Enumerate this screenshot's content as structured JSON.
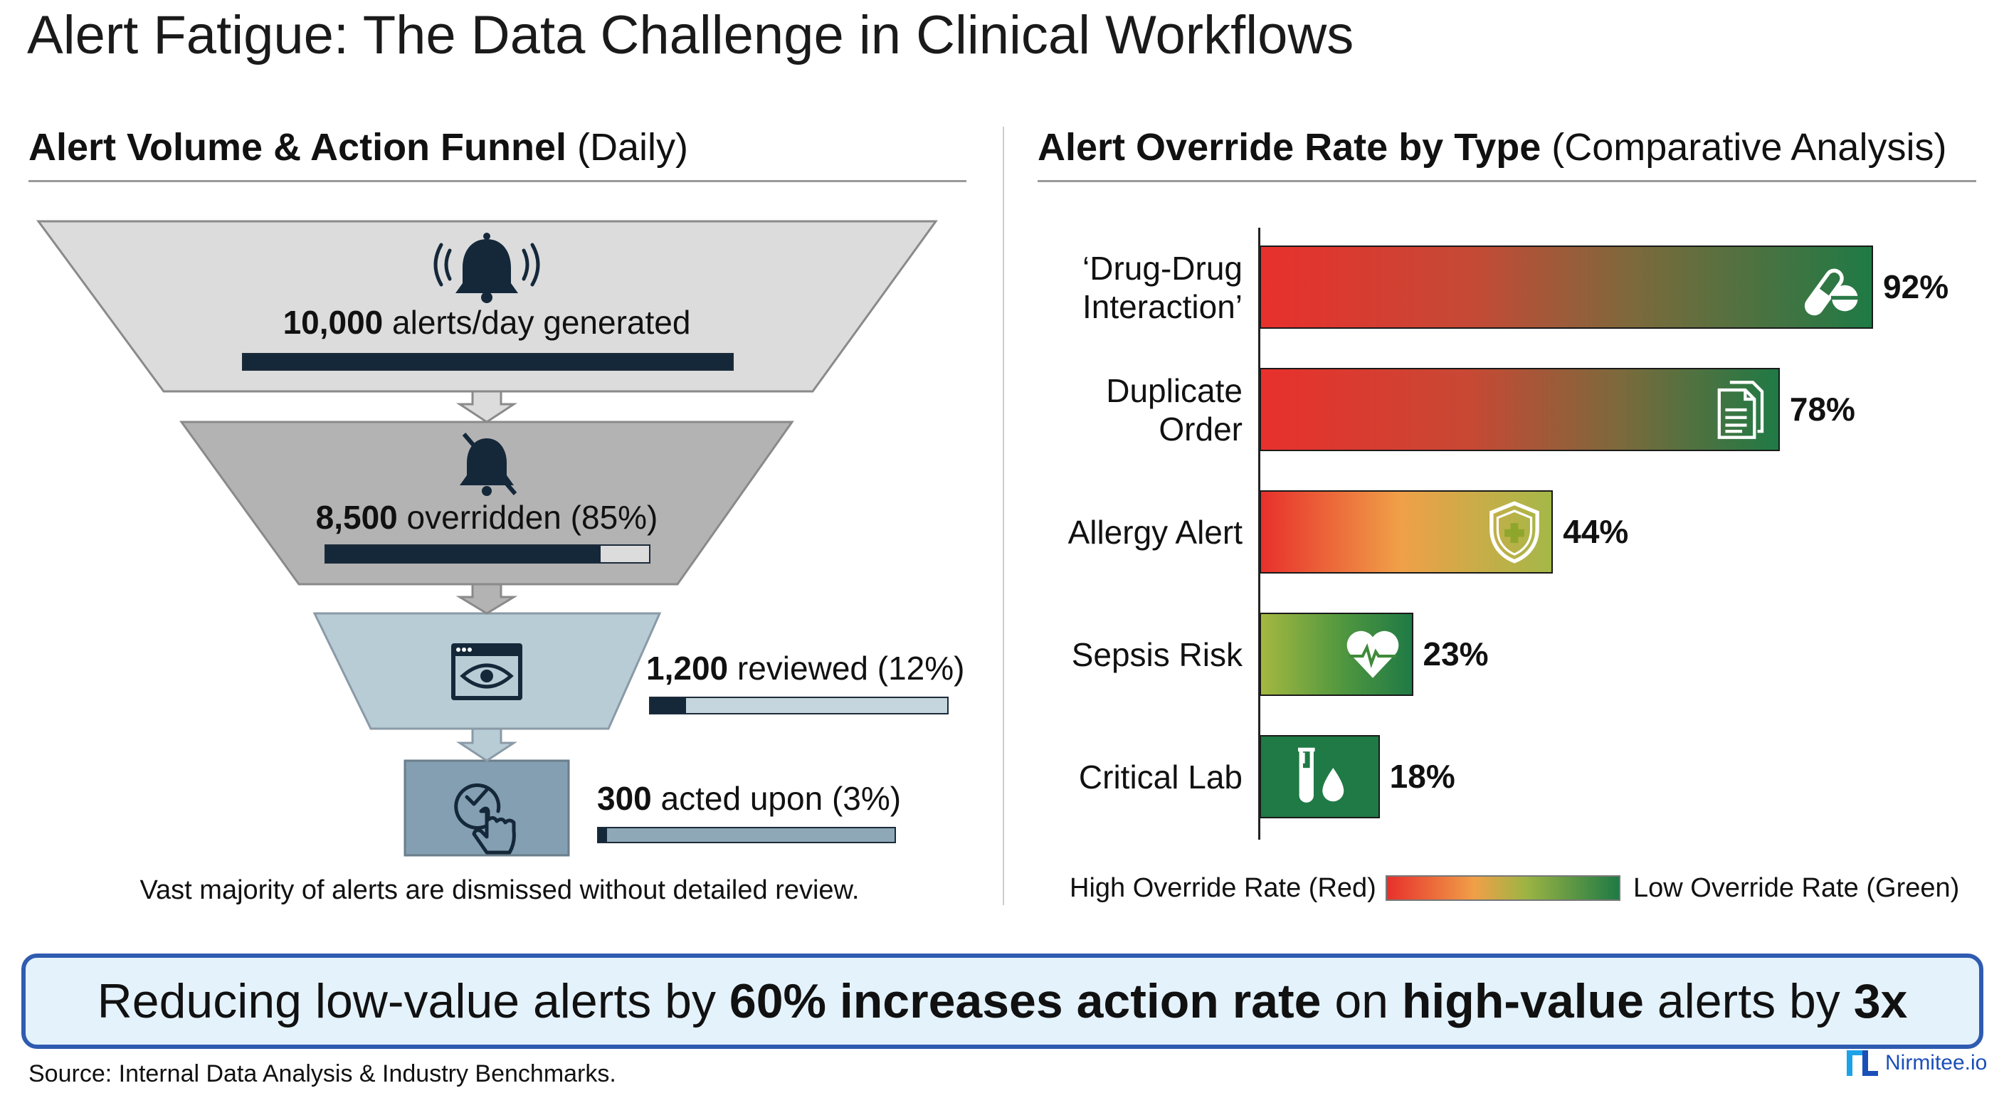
{
  "title": "Alert Fatigue: The Data Challenge in Clinical Workflows",
  "left_section": {
    "heading_bold": "Alert Volume & Action Funnel",
    "heading_rest": " (Daily)",
    "stages": [
      {
        "count": "10,000",
        "label": " alerts/day generated",
        "percent": 100,
        "icon": "bell-ringing-icon"
      },
      {
        "count": "8,500",
        "label": " overridden (85%)",
        "percent": 85,
        "icon": "bell-muted-icon"
      },
      {
        "count": "1,200",
        "label": " reviewed (12%)",
        "percent": 12,
        "icon": "eye-window-icon"
      },
      {
        "count": "300",
        "label": " acted upon (3%)",
        "percent": 3,
        "icon": "check-click-icon"
      }
    ],
    "caption": "Vast majority of alerts are dismissed without detailed review."
  },
  "right_section": {
    "heading_bold": "Alert Override Rate by Type",
    "heading_rest": " (Comparative Analysis)"
  },
  "chart_data": {
    "type": "bar",
    "orientation": "horizontal",
    "categories": [
      "‘Drug-Drug Interaction’",
      "Duplicate Order",
      "Allergy Alert",
      "Sepsis Risk",
      "Critical Lab"
    ],
    "category_lines": [
      [
        "‘Drug-Drug",
        "Interaction’"
      ],
      [
        "Duplicate",
        "Order"
      ],
      [
        "Allergy Alert"
      ],
      [
        "Sepsis Risk"
      ],
      [
        "Critical Lab"
      ]
    ],
    "values": [
      92,
      78,
      44,
      23,
      18
    ],
    "value_labels": [
      "92%",
      "78%",
      "44%",
      "23%",
      "18%"
    ],
    "icons": [
      "pills-icon",
      "documents-icon",
      "shield-cross-icon",
      "heart-pulse-icon",
      "test-tube-drop-icon"
    ],
    "xlim": [
      0,
      100
    ],
    "grid": false,
    "legend": {
      "placement": "bottom",
      "high_label": "High Override Rate (Red)",
      "low_label": "Low Override Rate (Green)",
      "high_color": "#e8302c",
      "mid_color": "#f0a048",
      "low_color": "#1f7a45"
    }
  },
  "banner": {
    "parts": [
      {
        "text": "Reducing low-value alerts by ",
        "bold": false
      },
      {
        "text": "60% increases action rate",
        "bold": true
      },
      {
        "text": " on ",
        "bold": false
      },
      {
        "text": "high-value",
        "bold": true
      },
      {
        "text": " alerts by ",
        "bold": false
      },
      {
        "text": "3x",
        "bold": true
      }
    ]
  },
  "source": "Source: Internal Data Analysis & Industry Benchmarks.",
  "logo": {
    "text": "Nirmitee.io",
    "color": "#1a4fb8"
  }
}
